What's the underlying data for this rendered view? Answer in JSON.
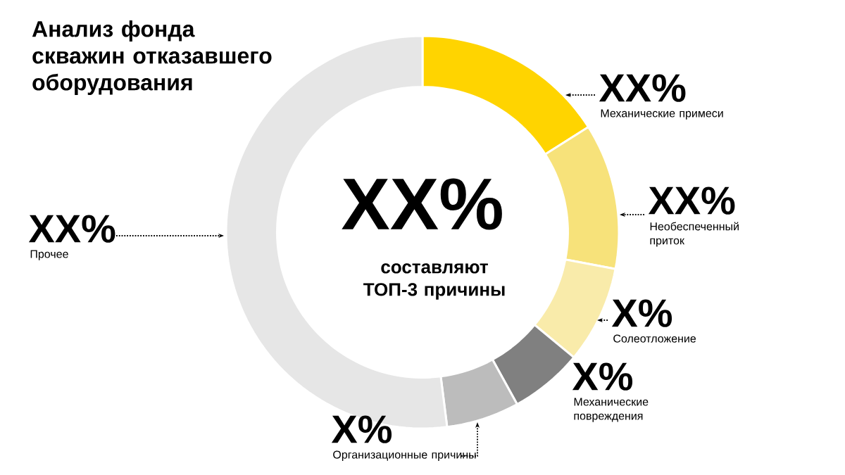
{
  "chart_data": {
    "type": "donut",
    "title": "Анализ фонда скважин отказавшего оборудования",
    "categories": [
      "Механические примеси",
      "Необеспеченный приток",
      "Солеотложение",
      "Механические повреждения",
      "Организационные причины",
      "Прочее"
    ],
    "values": [
      16,
      12,
      8,
      6,
      6,
      52
    ],
    "colors": [
      "#ffd400",
      "#f7e27a",
      "#f9ebaa",
      "#808080",
      "#bcbcbc",
      "#e6e6e6"
    ],
    "value_labels": [
      "XX%",
      "XX%",
      "X%",
      "X%",
      "X%",
      "XX%"
    ],
    "annotations": [
      "XX%",
      "составляют ТОП-3 причины"
    ]
  }
}
